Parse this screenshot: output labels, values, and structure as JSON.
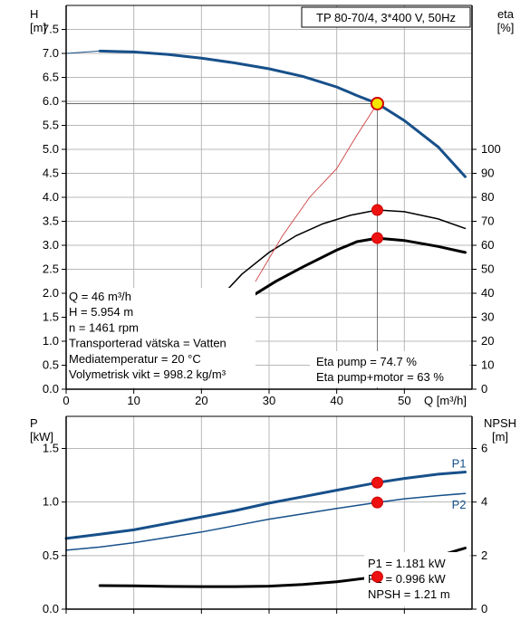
{
  "chart_data": [
    {
      "type": "line",
      "title": "TP 80-70/4, 3*400 V, 50Hz",
      "xlabel": "Q [m³/h]",
      "ylabel": "H\n[m]",
      "y2label": "eta\n[%]",
      "xlim": [
        0,
        60
      ],
      "ylim": [
        0,
        8
      ],
      "y2lim": [
        0,
        160
      ],
      "x_ticks": [
        "0",
        "10",
        "20",
        "30",
        "40",
        "50"
      ],
      "y_ticks": [
        "0.0",
        "0.5",
        "1.0",
        "1.5",
        "2.0",
        "2.5",
        "3.0",
        "3.5",
        "4.0",
        "4.5",
        "5.0",
        "5.5",
        "6.0",
        "6.5",
        "7.0",
        "7.5"
      ],
      "y2_ticks": [
        "0",
        "10",
        "20",
        "30",
        "40",
        "50",
        "60",
        "70",
        "80",
        "90",
        "100"
      ],
      "series": [
        {
          "kind": "head",
          "axis": "y",
          "color": "#17508a",
          "points": [
            [
              0,
              7.0
            ],
            [
              5,
              7.05
            ],
            [
              10,
              7.03
            ],
            [
              15,
              6.98
            ],
            [
              20,
              6.9
            ],
            [
              25,
              6.8
            ],
            [
              30,
              6.68
            ],
            [
              35,
              6.52
            ],
            [
              40,
              6.3
            ],
            [
              43,
              6.12
            ],
            [
              46,
              5.954
            ],
            [
              50,
              5.6
            ],
            [
              55,
              5.05
            ],
            [
              59,
              4.43
            ]
          ],
          "dashed_until": 5
        },
        {
          "kind": "eta-pump",
          "axis": "y2",
          "color": "#000000",
          "points": [
            [
              19,
              24
            ],
            [
              22,
              36
            ],
            [
              26,
              48
            ],
            [
              30,
              57
            ],
            [
              34,
              64
            ],
            [
              38,
              69
            ],
            [
              42,
              72.5
            ],
            [
              46,
              74.7
            ],
            [
              50,
              74
            ],
            [
              55,
              71
            ],
            [
              59,
              67
            ]
          ]
        },
        {
          "kind": "eta-pump-motor",
          "axis": "y2",
          "color": "#000000",
          "bold": true,
          "points": [
            [
              20,
              21
            ],
            [
              23,
              30
            ],
            [
              27,
              38
            ],
            [
              31,
              45
            ],
            [
              35,
              51
            ],
            [
              40,
              58
            ],
            [
              43,
              61.5
            ],
            [
              46,
              63
            ],
            [
              50,
              62
            ],
            [
              55,
              59.5
            ],
            [
              59,
              57
            ]
          ]
        },
        {
          "kind": "system-curve",
          "axis": "y",
          "color": "#d04040",
          "points": [
            [
              28,
              2.25
            ],
            [
              32,
              3.2
            ],
            [
              36,
              4.0
            ],
            [
              40,
              4.6
            ],
            [
              43,
              5.3
            ],
            [
              46,
              5.954
            ]
          ]
        }
      ],
      "operating_point": {
        "Q": 46,
        "H": 5.954,
        "eta_pump": 74.7,
        "eta_pump_motor": 63
      },
      "info_box": [
        "Q = 46 m³/h",
        "H = 5.954 m",
        "n = 1461 rpm",
        "Transporterad vätska = Vatten",
        "Mediatemperatur = 20 °C",
        "Volymetrisk vikt = 998.2 kg/m³"
      ],
      "eta_labels": [
        "Eta pump = 74.7 %",
        "Eta pump+motor = 63 %"
      ]
    },
    {
      "type": "line",
      "ylabel": "P\n[kW]",
      "y2label": "NPSH\n[m]",
      "xlim": [
        0,
        60
      ],
      "ylim": [
        0,
        1.8
      ],
      "y2lim": [
        0,
        7.2
      ],
      "y_ticks": [
        "0.0",
        "0.5",
        "1.0",
        "1.5"
      ],
      "y2_ticks": [
        "0",
        "2",
        "4",
        "6"
      ],
      "series": [
        {
          "name": "P1",
          "axis": "y",
          "color": "#17508a",
          "bold": true,
          "points": [
            [
              0,
              0.66
            ],
            [
              5,
              0.7
            ],
            [
              10,
              0.74
            ],
            [
              15,
              0.8
            ],
            [
              20,
              0.86
            ],
            [
              25,
              0.92
            ],
            [
              30,
              0.99
            ],
            [
              35,
              1.05
            ],
            [
              40,
              1.11
            ],
            [
              46,
              1.181
            ],
            [
              50,
              1.22
            ],
            [
              55,
              1.26
            ],
            [
              59,
              1.28
            ]
          ]
        },
        {
          "name": "P2",
          "axis": "y",
          "color": "#17508a",
          "points": [
            [
              0,
              0.55
            ],
            [
              5,
              0.58
            ],
            [
              10,
              0.62
            ],
            [
              15,
              0.67
            ],
            [
              20,
              0.72
            ],
            [
              25,
              0.78
            ],
            [
              30,
              0.84
            ],
            [
              35,
              0.89
            ],
            [
              40,
              0.94
            ],
            [
              46,
              0.996
            ],
            [
              50,
              1.03
            ],
            [
              55,
              1.06
            ],
            [
              59,
              1.08
            ]
          ]
        },
        {
          "name": "NPSH",
          "axis": "y2",
          "color": "#000000",
          "bold": true,
          "points": [
            [
              5,
              0.88
            ],
            [
              10,
              0.87
            ],
            [
              15,
              0.85
            ],
            [
              20,
              0.84
            ],
            [
              25,
              0.84
            ],
            [
              30,
              0.86
            ],
            [
              35,
              0.92
            ],
            [
              40,
              1.02
            ],
            [
              46,
              1.21
            ],
            [
              50,
              1.56
            ],
            [
              55,
              1.98
            ],
            [
              59,
              2.28
            ]
          ]
        }
      ],
      "operating_point": {
        "Q": 46,
        "P1": 1.181,
        "P2": 0.996,
        "NPSH": 1.21
      },
      "labels": [
        "P1 = 1.181 kW",
        "P2 = 0.996 kW",
        "NPSH = 1.21 m"
      ]
    }
  ]
}
